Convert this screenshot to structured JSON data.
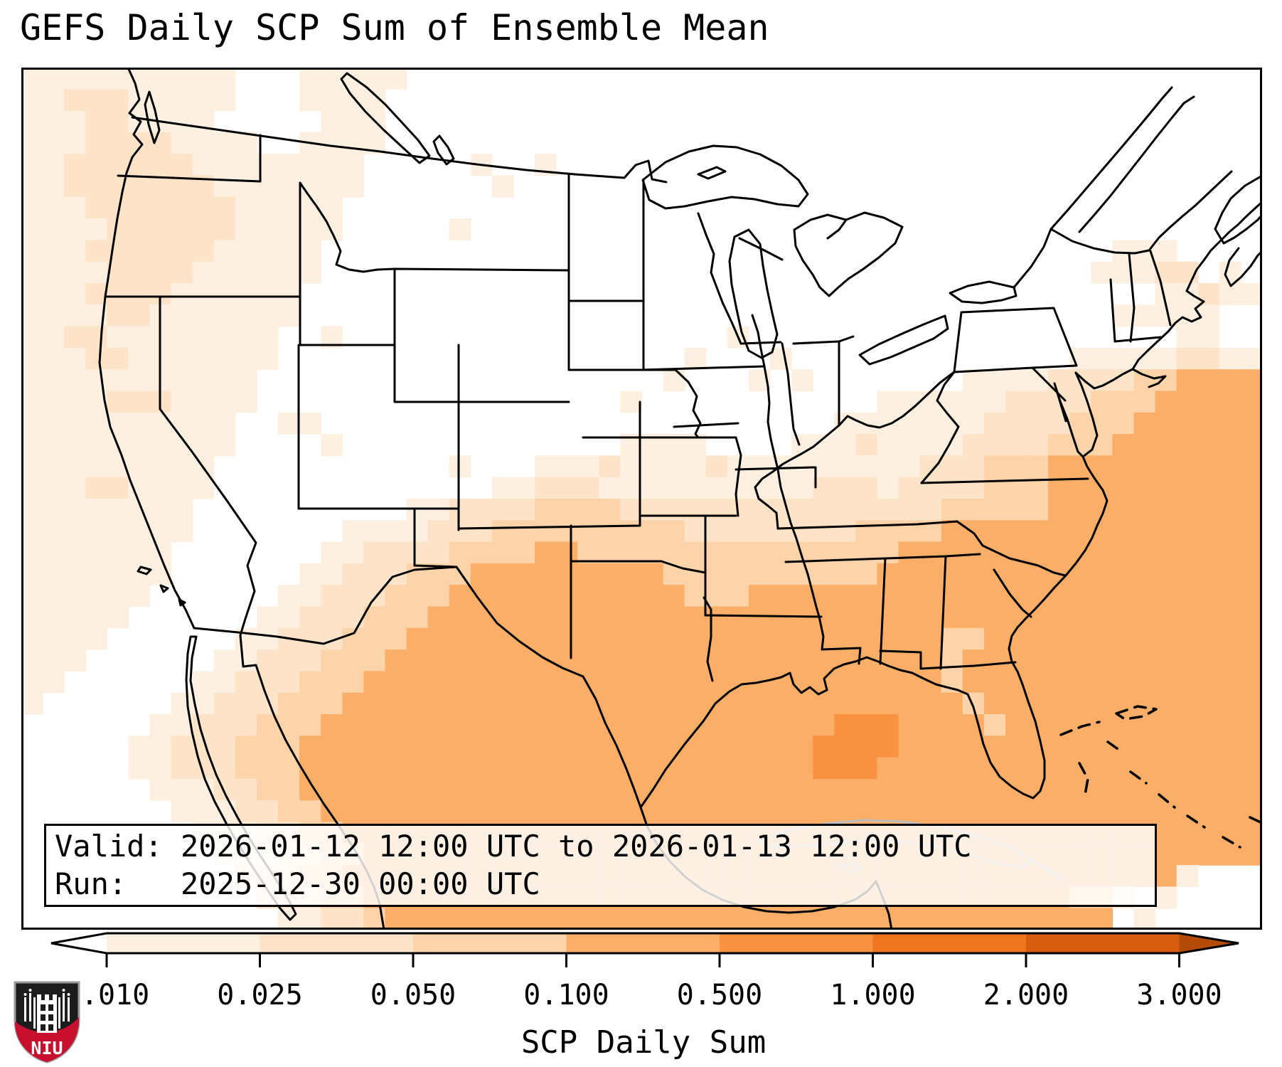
{
  "title": "GEFS Daily SCP Sum of Ensemble Mean",
  "info_box": {
    "valid_line": "Valid: 2026-01-12 12:00 UTC to 2026-01-13 12:00 UTC",
    "run_line": "Run:   2025-12-30 00:00 UTC"
  },
  "colorbar": {
    "label": "SCP Daily Sum",
    "tick_labels": [
      "0.010",
      "0.025",
      "0.050",
      "0.100",
      "0.500",
      "1.000",
      "2.000",
      "3.000"
    ],
    "segment_colors": [
      "#fdf0e1",
      "#fde3c8",
      "#fdd4a9",
      "#fbae68",
      "#f89140",
      "#f0751f",
      "#d65d0e"
    ],
    "under_color": "#ffffff",
    "over_color": "#b34a06"
  },
  "logo": {
    "text": "NIU",
    "shield_black": "#1c1c1c",
    "shield_red": "#c8102e"
  },
  "map": {
    "border_color": "#000000",
    "cuba_color": "#bcbcbc",
    "heatmap": {
      "palette": [
        "#ffffff",
        "#fdf0e1",
        "#fde3c8",
        "#fdd4a9",
        "#fbae68",
        "#f89140"
      ],
      "cols": 58,
      "rows": 40,
      "grid": [
        "1111111111000111110000000000000000000000000000000000000000",
        "1122211111000111100000000000000000000000000000000000000000",
        "1112211110000011100000000000000000000000000000000000000000",
        "1112222111100111100000000000000000000000000000000000000000",
        "1122222211111111000001001000000000000000000000000000000000",
        "1122222221111111000000100000000000000000000000000000000000",
        "1112222222111110000000000000000000000000000000000000000000",
        "1111222222111110000010000000000000000000000000000000000000",
        "1112222221111100000000000000000000000000000000000001110000",
        "1111222211111100000000000000000000000000000000000011122 1",
        "1112222111111000000000000000000000000000000000000000011211",
        "1111221111111000000000000000000000000000000000000001111100",
        "1122111111110010000000000000000001000000000000000000001100",
        "1112211111110000000000000000000100010000000000000111112211",
        "1111111111100000000000000000001000101000000011112222334444",
        "1111222111100000000000000000100000000000111111222233344444",
        "1111111111001100000000000000000000000011111112222333444444",
        "1111111111000010000000000000111100001112111122223334444444",
        "1111111110000000000010001112111121111111112223334444444444",
        "1112211110000000000000112221111111111222122223334444444444",
        "1111111100000000001122223333222222222222222333334444444444",
        "1111111100000001111222333333333222222223333444444444444444",
        "1111111000000011222233334433333333333333344444444444444444",
        "1111111000000112223334444444443333333333444444444444444444",
        "1111110000001122233344444444444333444444444444444444444444",
        "1111100000011222333444444444444444444444444444444444444444",
        "1111000000112223334444444444444444444444444334444444444444",
        "1110000001122233344444444444444444444444444344444444444444",
        "1100000011222333444444444444444444444444444344444444444444",
        "1000000112223334444444444444444444444444444434444444444444",
        "0000001122233344444444444444444444444455544443444444444444",
        "0000011222333444444444444444444444444555544444444444444444",
        "0000011222333444444444444444444444444555444444444444444444",
        "0000001112233444444444444444444444444444444444444444444444",
        "0000000111223344444444444444444444444444444444444444444444",
        "0000000011122334444444444444444444444444444444444444444444",
        "0000000001112233444444444444444444444444444444444444444444",
        "0000000000222334444444444444444444444444444444444444441000",
        "0000000000022233444444444444444444444444444444444331010000",
        "0000000000001122344444444444444444444444444444444440100000"
      ]
    }
  }
}
